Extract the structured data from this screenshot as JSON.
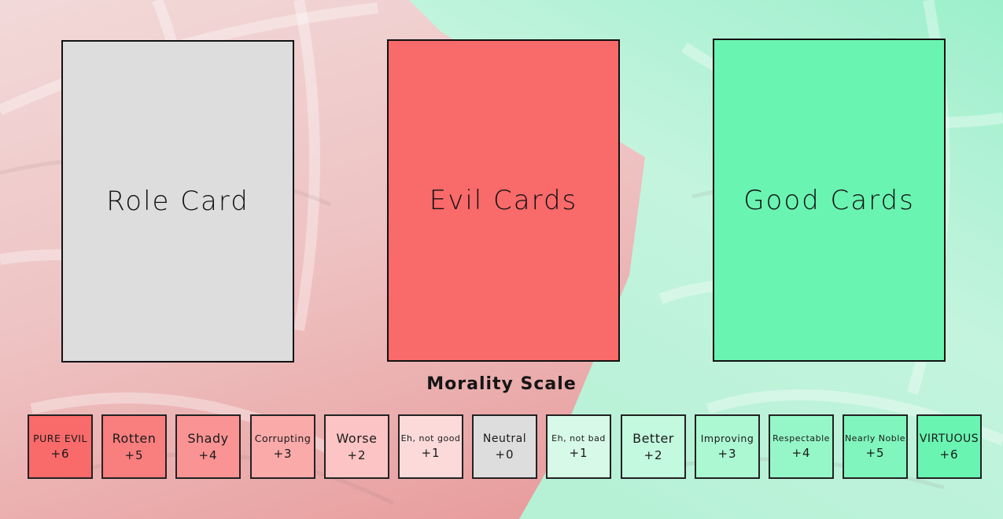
{
  "cards": {
    "role": {
      "label": "Role Card",
      "color": "#DDDDDD"
    },
    "evil": {
      "label": "Evil Cards",
      "color": "#F96A6A"
    },
    "good": {
      "label": "Good Cards",
      "color": "#6AF4B2"
    }
  },
  "morality_scale": {
    "title": "Morality Scale",
    "levels": [
      {
        "label": "PURE EVIL",
        "value": "+6",
        "color": "#F96A6A"
      },
      {
        "label": "Rotten",
        "value": "+5",
        "color": "#F97E7E"
      },
      {
        "label": "Shady",
        "value": "+4",
        "color": "#FA9494"
      },
      {
        "label": "Corrupting",
        "value": "+3",
        "color": "#FBAAAA"
      },
      {
        "label": "Worse",
        "value": "+2",
        "color": "#FCC4C4"
      },
      {
        "label": "Eh, not good",
        "value": "+1",
        "color": "#FCDADA"
      },
      {
        "label": "Neutral",
        "value": "+0",
        "color": "#DDDDDD"
      },
      {
        "label": "Eh, not bad",
        "value": "+1",
        "color": "#D7FAE8"
      },
      {
        "label": "Better",
        "value": "+2",
        "color": "#C3F9DE"
      },
      {
        "label": "Improving",
        "value": "+3",
        "color": "#ACF8D3"
      },
      {
        "label": "Respectable",
        "value": "+4",
        "color": "#95F7C8"
      },
      {
        "label": "Nearly Noble",
        "value": "+5",
        "color": "#80F5BD"
      },
      {
        "label": "VIRTUOUS",
        "value": "+6",
        "color": "#6AF4B2"
      }
    ]
  },
  "background": {
    "evil_tone": "#F4A8A8",
    "good_tone": "#A8F2D2"
  }
}
